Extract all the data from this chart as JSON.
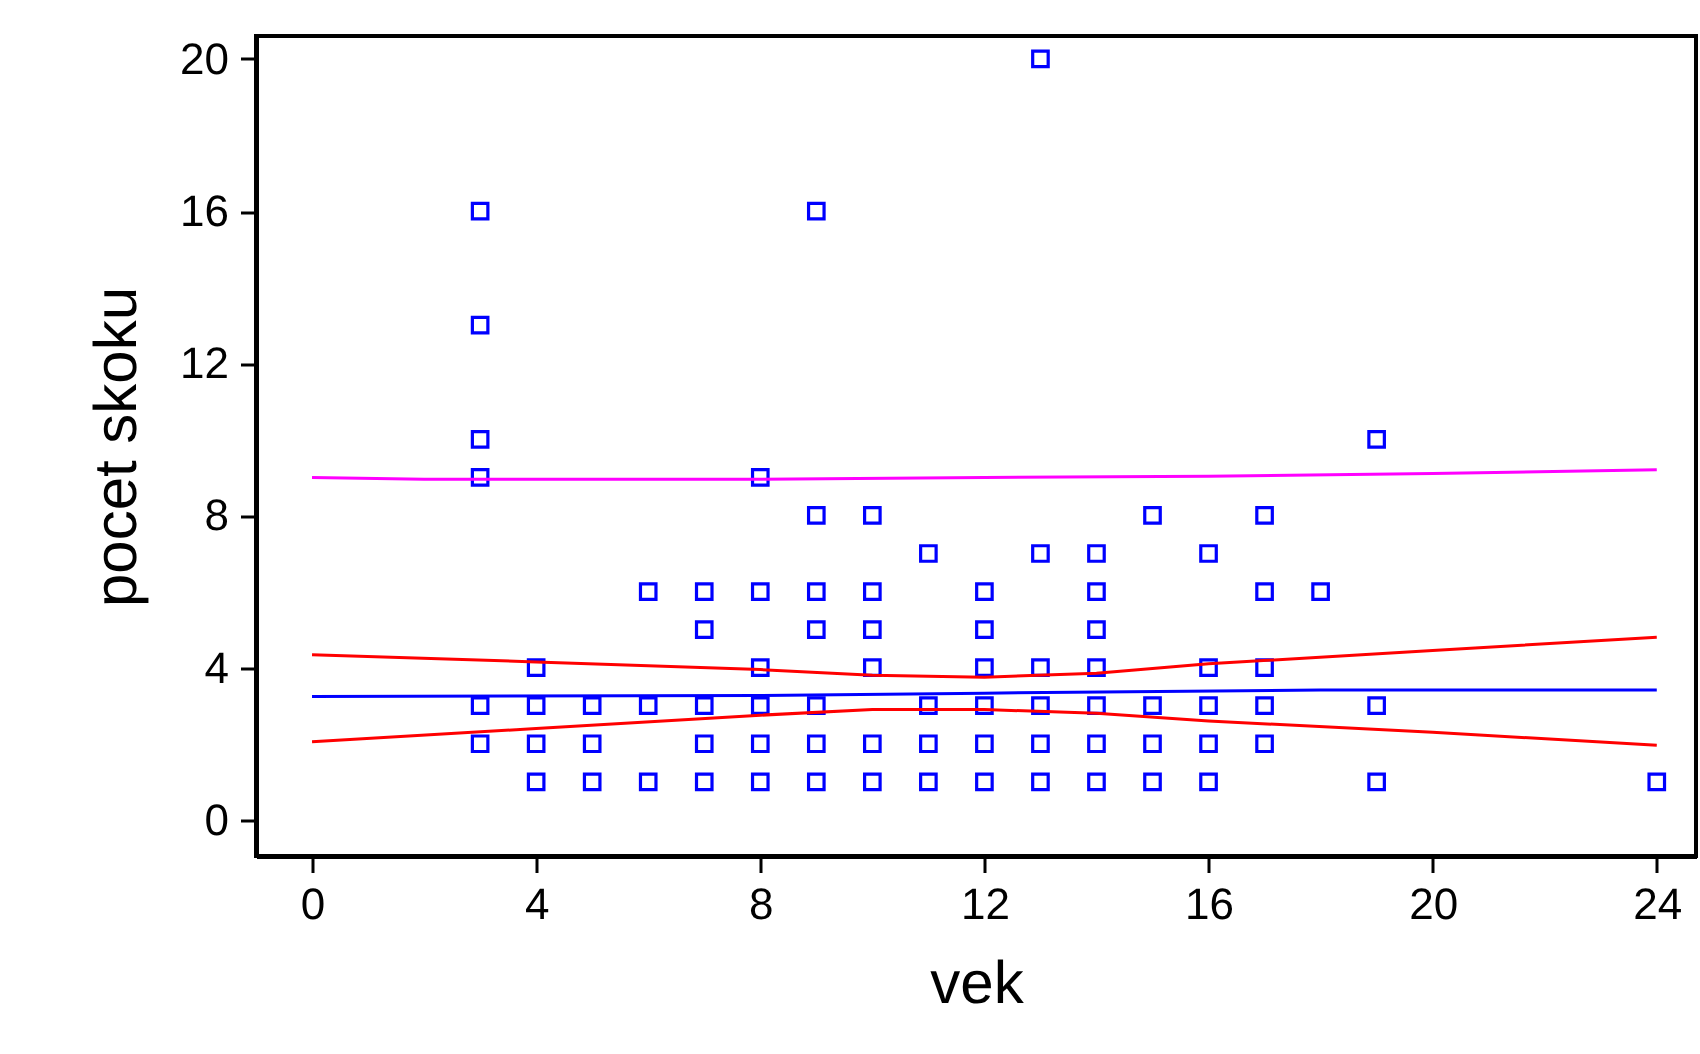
{
  "chart_data": {
    "type": "scatter",
    "xlabel": "vek",
    "ylabel": "pocet skoku",
    "xlim": [
      -1,
      24.7
    ],
    "ylim": [
      -0.95,
      20.6
    ],
    "xticks": [
      0,
      4,
      8,
      12,
      16,
      20,
      24
    ],
    "yticks": [
      0,
      4,
      8,
      12,
      16,
      20
    ],
    "grid": false,
    "series": [
      {
        "marker": "square",
        "color": "#0000ff",
        "x": [
          3,
          3,
          3,
          3,
          3,
          3,
          4,
          4,
          4,
          4,
          5,
          5,
          5,
          6,
          6,
          6,
          7,
          7,
          7,
          7,
          7,
          8,
          8,
          8,
          8,
          8,
          8,
          9,
          9,
          9,
          9,
          9,
          9,
          9,
          10,
          10,
          10,
          10,
          10,
          10,
          11,
          11,
          11,
          11,
          12,
          12,
          12,
          12,
          12,
          12,
          13,
          13,
          13,
          13,
          13,
          13,
          14,
          14,
          14,
          14,
          14,
          14,
          14,
          15,
          15,
          15,
          15,
          16,
          16,
          16,
          16,
          16,
          17,
          17,
          17,
          17,
          17,
          18,
          19,
          19,
          19,
          24
        ],
        "values": [
          16,
          13,
          10,
          9,
          3,
          2,
          4,
          3,
          2,
          1,
          3,
          2,
          1,
          6,
          3,
          1,
          6,
          5,
          3,
          2,
          1,
          9,
          6,
          4,
          3,
          2,
          1,
          16,
          8,
          6,
          5,
          3,
          2,
          1,
          8,
          6,
          5,
          4,
          2,
          1,
          7,
          3,
          2,
          1,
          6,
          5,
          4,
          3,
          2,
          1,
          20,
          7,
          4,
          3,
          2,
          1,
          7,
          6,
          5,
          4,
          3,
          2,
          1,
          8,
          3,
          2,
          1,
          7,
          4,
          3,
          2,
          1,
          8,
          6,
          4,
          3,
          2,
          6,
          10,
          3,
          1,
          1
        ]
      },
      {
        "type": "line",
        "color": "#0000ff",
        "x": [
          0,
          8,
          12,
          18,
          24
        ],
        "values": [
          3.24,
          3.27,
          3.33,
          3.41,
          3.41
        ]
      },
      {
        "type": "line",
        "color": "#ff0000",
        "x": [
          0,
          4,
          8,
          10,
          12,
          14,
          16,
          20,
          24
        ],
        "values": [
          4.34,
          4.15,
          3.95,
          3.8,
          3.75,
          3.85,
          4.1,
          4.45,
          4.8
        ]
      },
      {
        "type": "line",
        "color": "#ff0000",
        "x": [
          0,
          4,
          8,
          10,
          12,
          14,
          16,
          20,
          24
        ],
        "values": [
          2.05,
          2.4,
          2.75,
          2.9,
          2.9,
          2.8,
          2.6,
          2.3,
          1.96
        ]
      },
      {
        "type": "line",
        "color": "#ff00ff",
        "x": [
          0,
          2,
          8,
          12,
          16,
          20,
          24
        ],
        "values": [
          9.0,
          8.95,
          8.95,
          9.0,
          9.03,
          9.1,
          9.2
        ]
      }
    ]
  }
}
